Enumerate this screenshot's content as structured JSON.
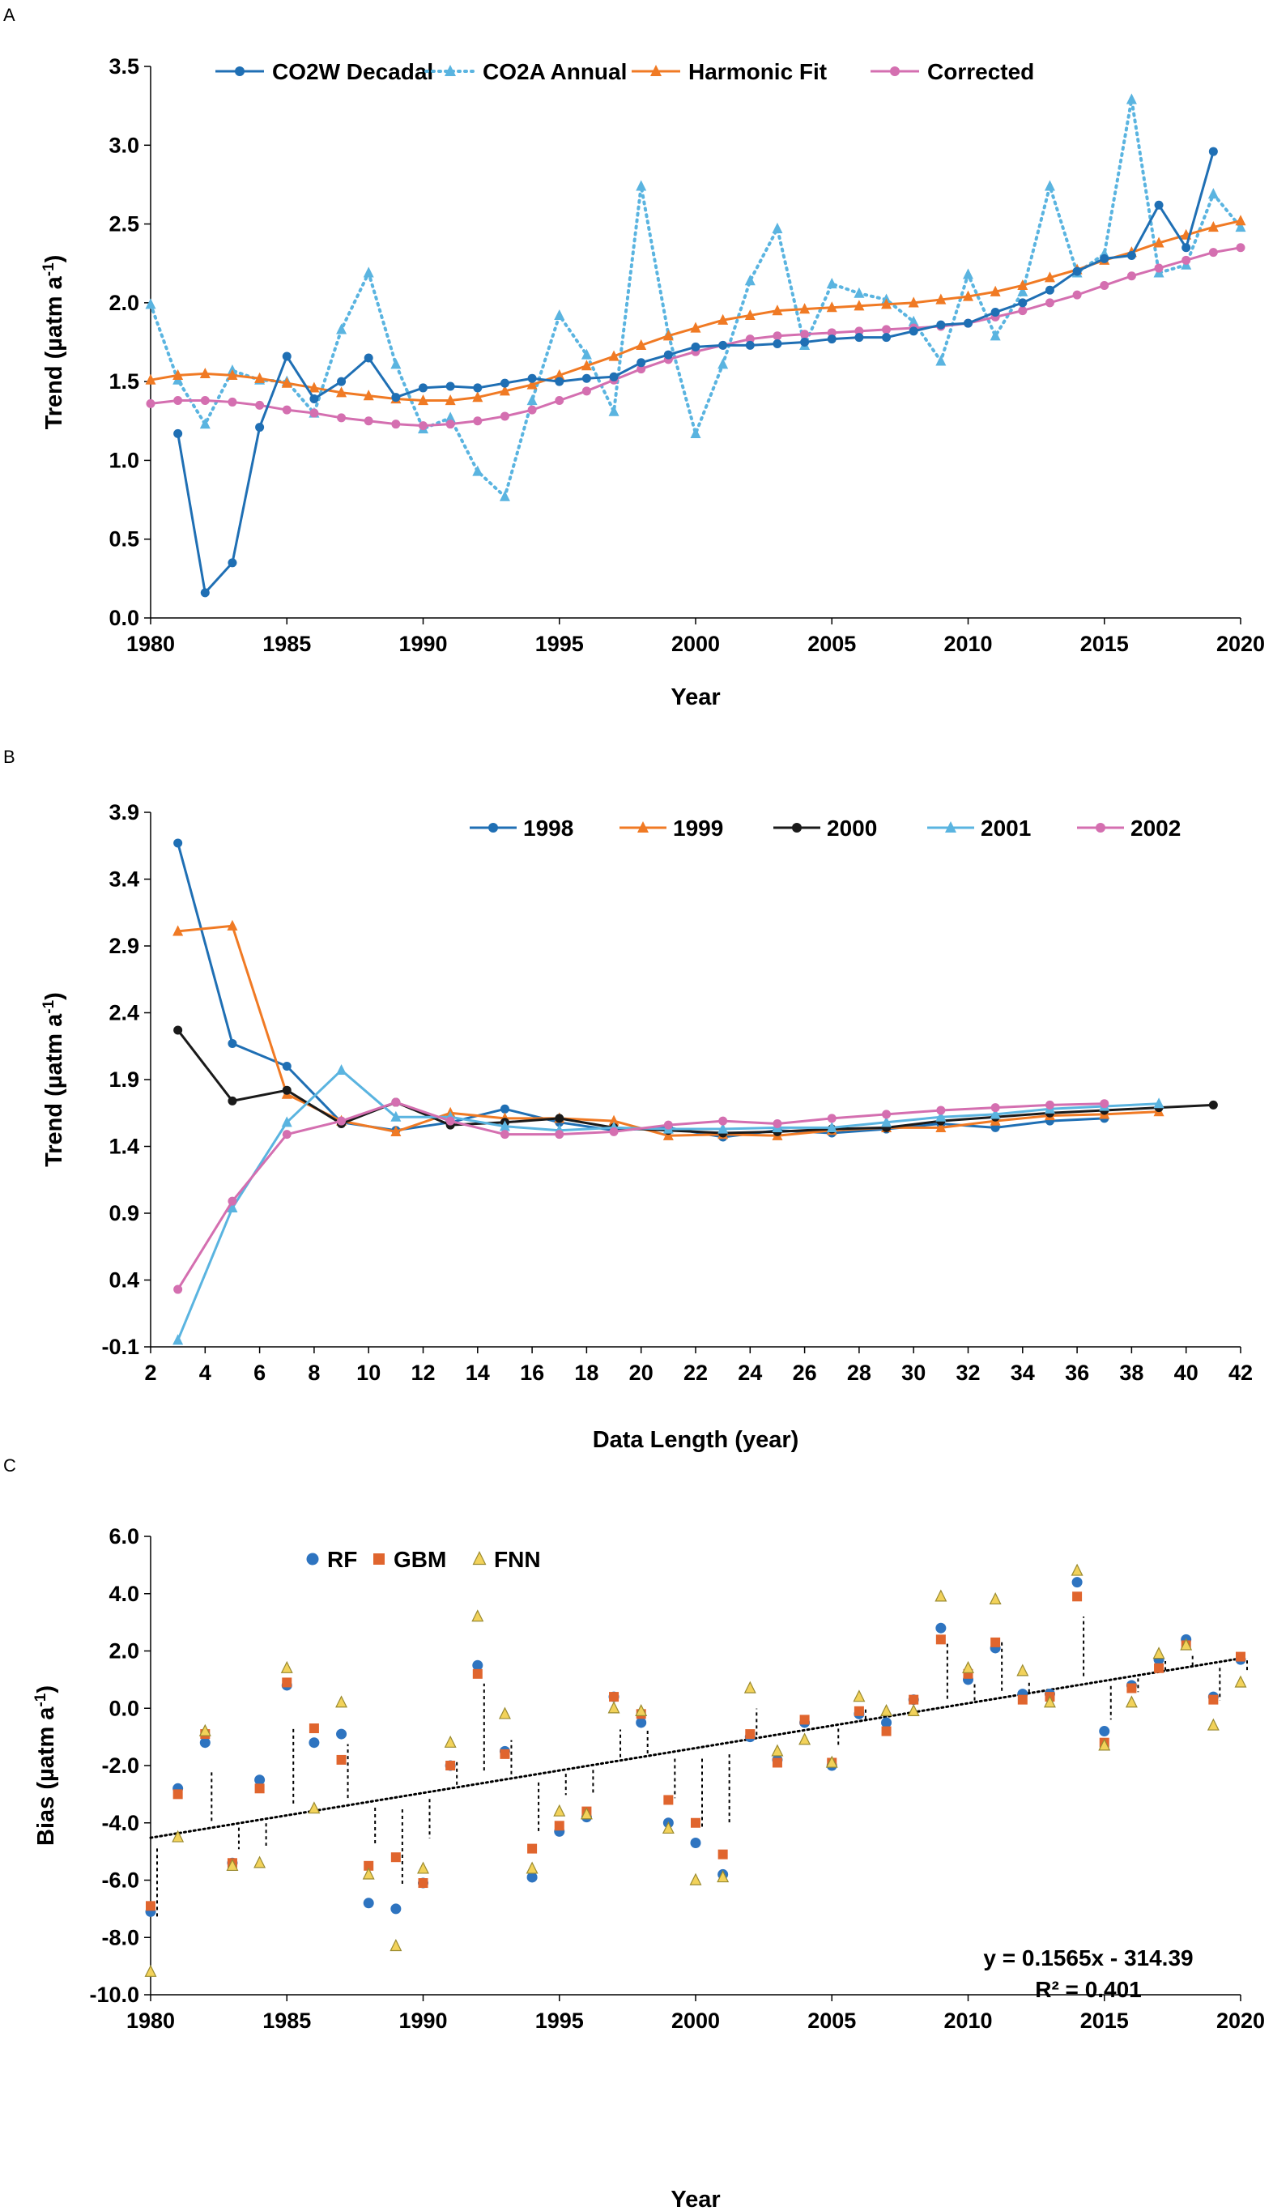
{
  "colors": {
    "co2w": "#1F6FB4",
    "co2a": "#5AB4E0",
    "harmonic": "#F07A24",
    "corrected": "#D46FB0",
    "y1998": "#1F6FB4",
    "y1999": "#F07A24",
    "y2000": "#1A1A1A",
    "y2001": "#5AB4E0",
    "y2002": "#D46FB0",
    "rf": "#2E74C0",
    "gbm": "#E0652E",
    "fnn": "#F2D25A",
    "fnn_edge": "#9A8A30"
  },
  "chart_data": [
    {
      "panel": "A",
      "type": "line",
      "xlabel": "Year",
      "ylabel_main": "Trend (µatm a",
      "ylabel_sup": "-1",
      "ylabel_end": ")",
      "xlim": [
        1980,
        2020
      ],
      "ylim": [
        0,
        3.5
      ],
      "xticks": [
        "1980",
        "1985",
        "1990",
        "1995",
        "2000",
        "2005",
        "2010",
        "2015",
        "2020"
      ],
      "yticks": [
        "0.0",
        "0.5",
        "1.0",
        "1.5",
        "2.0",
        "2.5",
        "3.0",
        "3.5"
      ],
      "series": [
        {
          "name": "CO2W Decadal",
          "color": "#1F6FB4",
          "marker": "circle",
          "dash": "solid",
          "x": [
            1981,
            1982,
            1983,
            1984,
            1985,
            1986,
            1987,
            1988,
            1989,
            1990,
            1991,
            1992,
            1993,
            1994,
            1995,
            1996,
            1997,
            1998,
            1999,
            2000,
            2001,
            2002,
            2003,
            2004,
            2005,
            2006,
            2007,
            2008,
            2009,
            2010,
            2011,
            2012,
            2013,
            2014,
            2015,
            2016,
            2017,
            2018,
            2019
          ],
          "values": [
            1.17,
            0.16,
            0.35,
            1.21,
            1.66,
            1.39,
            1.5,
            1.65,
            1.4,
            1.46,
            1.47,
            1.46,
            1.49,
            1.52,
            1.5,
            1.52,
            1.53,
            1.62,
            1.67,
            1.72,
            1.73,
            1.73,
            1.74,
            1.75,
            1.77,
            1.78,
            1.78,
            1.82,
            1.86,
            1.87,
            1.94,
            2.0,
            2.08,
            2.2,
            2.28,
            2.3,
            2.62,
            2.35,
            2.96
          ]
        },
        {
          "name": "CO2A Annual",
          "color": "#5AB4E0",
          "marker": "triangle",
          "dash": "dotted",
          "x": [
            1980,
            1981,
            1982,
            1983,
            1984,
            1985,
            1986,
            1987,
            1988,
            1989,
            1990,
            1991,
            1992,
            1993,
            1994,
            1995,
            1996,
            1997,
            1998,
            1999,
            2000,
            2001,
            2002,
            2003,
            2004,
            2005,
            2006,
            2007,
            2008,
            2009,
            2010,
            2011,
            2012,
            2013,
            2014,
            2015,
            2016,
            2017,
            2018,
            2019,
            2020
          ],
          "values": [
            1.99,
            1.51,
            1.23,
            1.57,
            1.51,
            1.5,
            1.3,
            1.83,
            2.19,
            1.61,
            1.2,
            1.27,
            0.93,
            0.77,
            1.38,
            1.92,
            1.67,
            1.31,
            2.74,
            1.8,
            1.17,
            1.61,
            2.14,
            2.47,
            1.73,
            2.12,
            2.06,
            2.02,
            1.88,
            1.63,
            2.18,
            1.79,
            2.07,
            2.74,
            2.19,
            2.31,
            3.29,
            2.19,
            2.24,
            2.69,
            2.48
          ]
        },
        {
          "name": "Harmonic Fit",
          "color": "#F07A24",
          "marker": "triangle",
          "dash": "solid",
          "x": [
            1980,
            1981,
            1982,
            1983,
            1984,
            1985,
            1986,
            1987,
            1988,
            1989,
            1990,
            1991,
            1992,
            1993,
            1994,
            1995,
            1996,
            1997,
            1998,
            1999,
            2000,
            2001,
            2002,
            2003,
            2004,
            2005,
            2006,
            2007,
            2008,
            2009,
            2010,
            2011,
            2012,
            2013,
            2014,
            2015,
            2016,
            2017,
            2018,
            2019,
            2020
          ],
          "values": [
            1.51,
            1.54,
            1.55,
            1.54,
            1.52,
            1.49,
            1.46,
            1.43,
            1.41,
            1.39,
            1.38,
            1.38,
            1.4,
            1.44,
            1.48,
            1.54,
            1.6,
            1.66,
            1.73,
            1.79,
            1.84,
            1.89,
            1.92,
            1.95,
            1.96,
            1.97,
            1.98,
            1.99,
            2.0,
            2.02,
            2.04,
            2.07,
            2.11,
            2.16,
            2.21,
            2.27,
            2.32,
            2.38,
            2.43,
            2.48,
            2.52
          ]
        },
        {
          "name": "Corrected",
          "color": "#D46FB0",
          "marker": "circle",
          "dash": "solid",
          "x": [
            1980,
            1981,
            1982,
            1983,
            1984,
            1985,
            1986,
            1987,
            1988,
            1989,
            1990,
            1991,
            1992,
            1993,
            1994,
            1995,
            1996,
            1997,
            1998,
            1999,
            2000,
            2001,
            2002,
            2003,
            2004,
            2005,
            2006,
            2007,
            2008,
            2009,
            2010,
            2011,
            2012,
            2013,
            2014,
            2015,
            2016,
            2017,
            2018,
            2019,
            2020
          ],
          "values": [
            1.36,
            1.38,
            1.38,
            1.37,
            1.35,
            1.32,
            1.3,
            1.27,
            1.25,
            1.23,
            1.22,
            1.23,
            1.25,
            1.28,
            1.32,
            1.38,
            1.44,
            1.51,
            1.58,
            1.64,
            1.69,
            1.73,
            1.77,
            1.79,
            1.8,
            1.81,
            1.82,
            1.83,
            1.84,
            1.85,
            1.87,
            1.91,
            1.95,
            2.0,
            2.05,
            2.11,
            2.17,
            2.22,
            2.27,
            2.32,
            2.35
          ]
        }
      ]
    },
    {
      "panel": "B",
      "type": "line",
      "xlabel": "Data Length (year)",
      "ylabel_main": "Trend (µatm a",
      "ylabel_sup": "-1",
      "ylabel_end": ")",
      "xlim": [
        2,
        42
      ],
      "ylim": [
        -0.1,
        3.9
      ],
      "xticks": [
        "2",
        "4",
        "6",
        "8",
        "10",
        "12",
        "14",
        "16",
        "18",
        "20",
        "22",
        "24",
        "26",
        "28",
        "30",
        "32",
        "34",
        "36",
        "38",
        "40",
        "42"
      ],
      "yticks": [
        "-0.1",
        "0.4",
        "0.9",
        "1.4",
        "1.9",
        "2.4",
        "2.9",
        "3.4",
        "3.9"
      ],
      "series": [
        {
          "name": "1998",
          "color": "#1F6FB4",
          "marker": "circle",
          "x": [
            3,
            5,
            7,
            9,
            11,
            13,
            15,
            17,
            19,
            21,
            23,
            25,
            27,
            29,
            31,
            33,
            35,
            37
          ],
          "values": [
            3.67,
            2.17,
            2.0,
            1.58,
            1.52,
            1.58,
            1.68,
            1.58,
            1.52,
            1.54,
            1.47,
            1.52,
            1.5,
            1.53,
            1.57,
            1.54,
            1.59,
            1.61
          ]
        },
        {
          "name": "1999",
          "color": "#F07A24",
          "marker": "triangle",
          "x": [
            3,
            5,
            7,
            9,
            11,
            13,
            15,
            17,
            19,
            21,
            23,
            25,
            27,
            29,
            31,
            33,
            35,
            37,
            39
          ],
          "values": [
            3.01,
            3.05,
            1.79,
            1.59,
            1.51,
            1.65,
            1.61,
            1.61,
            1.59,
            1.48,
            1.49,
            1.48,
            1.52,
            1.54,
            1.54,
            1.59,
            1.63,
            1.64,
            1.66
          ]
        },
        {
          "name": "2000",
          "color": "#1A1A1A",
          "marker": "circle",
          "x": [
            3,
            5,
            7,
            9,
            11,
            13,
            15,
            17,
            19,
            21,
            23,
            25,
            27,
            29,
            31,
            33,
            35,
            37,
            39,
            41
          ],
          "values": [
            2.27,
            1.74,
            1.82,
            1.57,
            1.73,
            1.56,
            1.58,
            1.61,
            1.54,
            1.52,
            1.5,
            1.51,
            1.53,
            1.54,
            1.59,
            1.62,
            1.65,
            1.67,
            1.69,
            1.71
          ]
        },
        {
          "name": "2001",
          "color": "#5AB4E0",
          "marker": "triangle",
          "x": [
            3,
            5,
            7,
            9,
            11,
            13,
            15,
            17,
            19,
            21,
            23,
            25,
            27,
            29,
            31,
            33,
            35,
            37,
            39
          ],
          "values": [
            -0.05,
            0.94,
            1.58,
            1.97,
            1.62,
            1.62,
            1.55,
            1.52,
            1.54,
            1.53,
            1.53,
            1.54,
            1.54,
            1.58,
            1.62,
            1.64,
            1.68,
            1.7,
            1.72
          ]
        },
        {
          "name": "2002",
          "color": "#D46FB0",
          "marker": "circle",
          "x": [
            3,
            5,
            7,
            9,
            11,
            13,
            15,
            17,
            19,
            21,
            23,
            25,
            27,
            29,
            31,
            33,
            35,
            37
          ],
          "values": [
            0.33,
            0.99,
            1.49,
            1.59,
            1.73,
            1.59,
            1.49,
            1.49,
            1.51,
            1.56,
            1.59,
            1.57,
            1.61,
            1.64,
            1.67,
            1.69,
            1.71,
            1.72
          ]
        }
      ]
    },
    {
      "panel": "C",
      "type": "scatter",
      "xlabel": "Year",
      "ylabel_main": "Bias (µatm a",
      "ylabel_sup": "-1",
      "ylabel_end": ")",
      "xlim": [
        1980,
        2020
      ],
      "ylim": [
        -10,
        6
      ],
      "xticks": [
        "1980",
        "1985",
        "1990",
        "1995",
        "2000",
        "2005",
        "2010",
        "2015",
        "2020"
      ],
      "yticks": [
        "-10.0",
        "-8.0",
        "-6.0",
        "-4.0",
        "-2.0",
        "0.0",
        "2.0",
        "4.0",
        "6.0"
      ],
      "x": [
        1980,
        1981,
        1982,
        1983,
        1984,
        1985,
        1986,
        1987,
        1988,
        1989,
        1990,
        1991,
        1992,
        1993,
        1994,
        1995,
        1996,
        1997,
        1998,
        1999,
        2000,
        2001,
        2002,
        2003,
        2004,
        2005,
        2006,
        2007,
        2008,
        2009,
        2010,
        2011,
        2012,
        2013,
        2014,
        2015,
        2016,
        2017,
        2018,
        2019,
        2020
      ],
      "series": [
        {
          "name": "RF",
          "color": "#2E74C0",
          "marker": "circle",
          "values": [
            -7.1,
            -2.8,
            -1.2,
            -5.4,
            -2.5,
            0.8,
            -1.2,
            -0.9,
            -6.8,
            -7.0,
            -6.1,
            -2.0,
            1.5,
            -1.5,
            -5.9,
            -4.3,
            -3.8,
            0.4,
            -0.5,
            -4.0,
            -4.7,
            -5.8,
            -1.0,
            -1.8,
            -0.5,
            -2.0,
            -0.2,
            -0.5,
            0.3,
            2.8,
            1.0,
            2.1,
            0.5,
            0.5,
            4.4,
            -0.8,
            0.8,
            1.7,
            2.4,
            0.4,
            1.7
          ]
        },
        {
          "name": "GBM",
          "color": "#E0652E",
          "marker": "square",
          "values": [
            -6.9,
            -3.0,
            -0.9,
            -5.4,
            -2.8,
            0.9,
            -0.7,
            -1.8,
            -5.5,
            -5.2,
            -6.1,
            -2.0,
            1.2,
            -1.6,
            -4.9,
            -4.1,
            -3.6,
            0.4,
            -0.2,
            -3.2,
            -4.0,
            -5.1,
            -0.9,
            -1.9,
            -0.4,
            -1.9,
            -0.1,
            -0.8,
            0.3,
            2.4,
            1.2,
            2.3,
            0.3,
            0.4,
            3.9,
            -1.2,
            0.7,
            1.4,
            2.2,
            0.3,
            1.8
          ]
        },
        {
          "name": "FNN",
          "color": "#F2D25A",
          "marker": "triangle",
          "values": [
            -9.2,
            -4.5,
            -0.8,
            -5.5,
            -5.4,
            1.4,
            -3.5,
            0.2,
            -5.8,
            -8.3,
            -5.6,
            -1.2,
            3.2,
            -0.2,
            -5.6,
            -3.6,
            -3.7,
            0.0,
            -0.1,
            -4.2,
            -6.0,
            -5.9,
            0.7,
            -1.5,
            -1.1,
            -1.9,
            0.4,
            -0.1,
            -0.1,
            3.9,
            1.4,
            3.8,
            1.3,
            0.2,
            4.8,
            -1.3,
            0.2,
            1.9,
            2.2,
            -0.6,
            0.9
          ]
        }
      ],
      "trendline": {
        "slope": 0.1565,
        "intercept": -314.39,
        "label_eq": "y = 0.1565x - 314.39",
        "label_r2": "R² = 0.401"
      }
    }
  ]
}
